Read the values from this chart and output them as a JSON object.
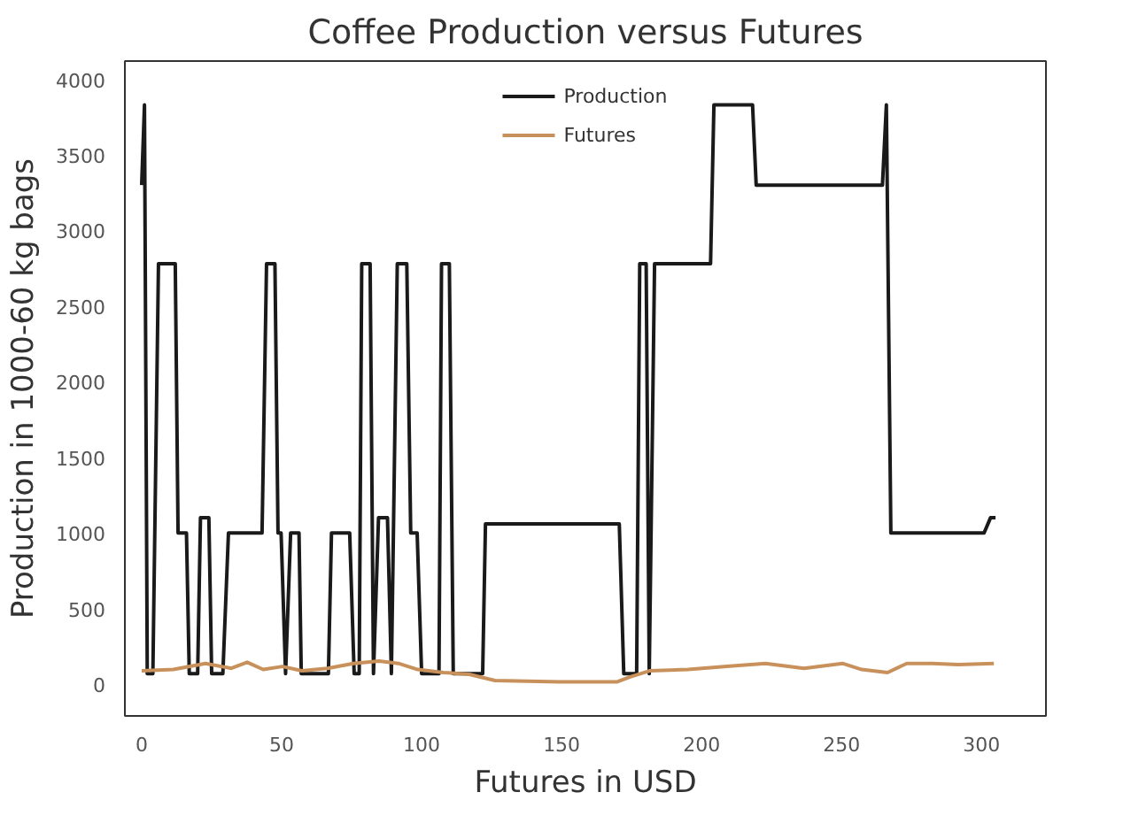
{
  "chart_data": {
    "type": "line",
    "title": "Coffee Production versus Futures",
    "xlabel": "Futures in USD",
    "ylabel": "Production in 1000-60 kg bags",
    "xlim": [
      -6,
      323
    ],
    "ylim": [
      -210,
      4120
    ],
    "xticks": [
      0,
      50,
      100,
      150,
      200,
      250,
      300
    ],
    "yticks": [
      0,
      500,
      1000,
      1500,
      2000,
      2500,
      3000,
      3500,
      4000
    ],
    "grid": false,
    "legend": "top",
    "marker": "none",
    "line_style": "solid",
    "series": [
      {
        "name": "Production",
        "color": "#1a1a1a",
        "x": [
          0,
          1,
          2,
          4,
          6,
          12,
          13,
          16,
          17,
          20,
          21,
          24,
          25,
          29,
          31,
          43,
          44.6,
          47.6,
          48.7,
          49.8,
          51.4,
          53.2,
          56.2,
          57,
          66.7,
          67.8,
          74.3,
          75.9,
          77.7,
          78.6,
          81.6,
          82.8,
          84.6,
          87.8,
          89.2,
          91.3,
          94.7,
          96.1,
          98.4,
          100,
          106.2,
          107.1,
          109.9,
          111.3,
          121.8,
          122.8,
          170.6,
          172.2,
          176.8,
          177.9,
          180.2,
          181.3,
          183.2,
          203.2,
          204.4,
          218.2,
          219.5,
          264.6,
          266,
          267.6,
          300.9,
          303.2,
          305
        ],
        "values": [
          3300,
          3830,
          70,
          70,
          2780,
          2780,
          1000,
          1000,
          70,
          70,
          1100,
          1100,
          70,
          70,
          1000,
          1000,
          2780,
          2780,
          1000,
          1000,
          70,
          1000,
          1000,
          70,
          70,
          1000,
          1000,
          70,
          70,
          2780,
          2780,
          70,
          1100,
          1100,
          70,
          2780,
          2780,
          1000,
          1000,
          70,
          70,
          2780,
          2780,
          70,
          70,
          1060,
          1060,
          70,
          70,
          2780,
          2780,
          70,
          2780,
          2780,
          3830,
          3830,
          3300,
          3300,
          3830,
          1000,
          1000,
          1100,
          1100
        ]
      },
      {
        "name": "Futures",
        "color": "#c8905a",
        "x": [
          0,
          11.3,
          22.8,
          32,
          37.7,
          43.4,
          50.3,
          57.2,
          66.4,
          75.6,
          84.8,
          91.7,
          98.6,
          107.8,
          117,
          126.2,
          149.2,
          169.9,
          174.5,
          181.4,
          195.2,
          209,
          222.8,
          236.6,
          250.3,
          257.2,
          266.4,
          273.3,
          282.5,
          291.7,
          304.4
        ],
        "values": [
          88,
          97,
          137,
          105,
          145,
          97,
          117,
          88,
          105,
          137,
          153,
          137,
          97,
          77,
          65,
          24,
          16,
          16,
          48,
          88,
          97,
          117,
          137,
          105,
          137,
          97,
          77,
          137,
          137,
          129,
          137
        ]
      }
    ]
  }
}
